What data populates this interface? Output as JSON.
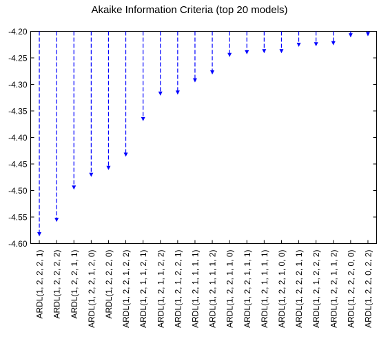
{
  "chart_data": {
    "type": "bar",
    "title": "Akaike Information Criteria (top 20 models)",
    "xlabel": "",
    "ylabel": "",
    "ylim": [
      -4.6,
      -4.2
    ],
    "yticks": [
      "-4.20",
      "-4.25",
      "-4.30",
      "-4.35",
      "-4.40",
      "-4.45",
      "-4.50",
      "-4.55",
      "-4.60"
    ],
    "grid": false,
    "legend": "none",
    "style": "dashed vertical arrows from the top axis (-4.20) down to each value",
    "colors": {
      "series": "#0000ff",
      "axes": "#000000",
      "background": "#ffffff"
    },
    "categories": [
      "ARDL(1, 2, 2, 2, 1)",
      "ARDL(1, 2, 2, 2, 2)",
      "ARDL(1, 2, 2, 1, 1)",
      "ARDL(1, 2, 2, 1, 2, 0)",
      "ARDL(1, 2, 2, 2, 0)",
      "ARDL(1, 2, 2, 1, 2, 2)",
      "ARDL(1, 2, 1, 1, 2, 1)",
      "ARDL(1, 2, 1, 1, 2, 2)",
      "ARDL(1, 2, 1, 2, 2, 1)",
      "ARDL(1, 2, 1, 1, 1, 1)",
      "ARDL(1, 2, 1, 1, 1, 2)",
      "ARDL(1, 2, 2, 1, 1, 0)",
      "ARDL(1, 2, 2, 1, 1, 1)",
      "ARDL(1, 2, 1, 1, 1, 1)",
      "ARDL(1, 2, 2, 1, 0, 0)",
      "ARDL(1, 2, 2, 2, 1, 1)",
      "ARDL(1, 2, 1, 2, 2, 2)",
      "ARDL(1, 2, 2, 1, 1, 2)",
      "ARDL(1, 2, 2, 2, 0, 0)",
      "ARDL(1, 2, 2, 0, 2, 2)"
    ],
    "values": [
      -4.585,
      -4.558,
      -4.497,
      -4.473,
      -4.46,
      -4.435,
      -4.368,
      -4.32,
      -4.318,
      -4.295,
      -4.28,
      -4.247,
      -4.242,
      -4.24,
      -4.24,
      -4.228,
      -4.227,
      -4.225,
      -4.21,
      -4.208
    ]
  }
}
